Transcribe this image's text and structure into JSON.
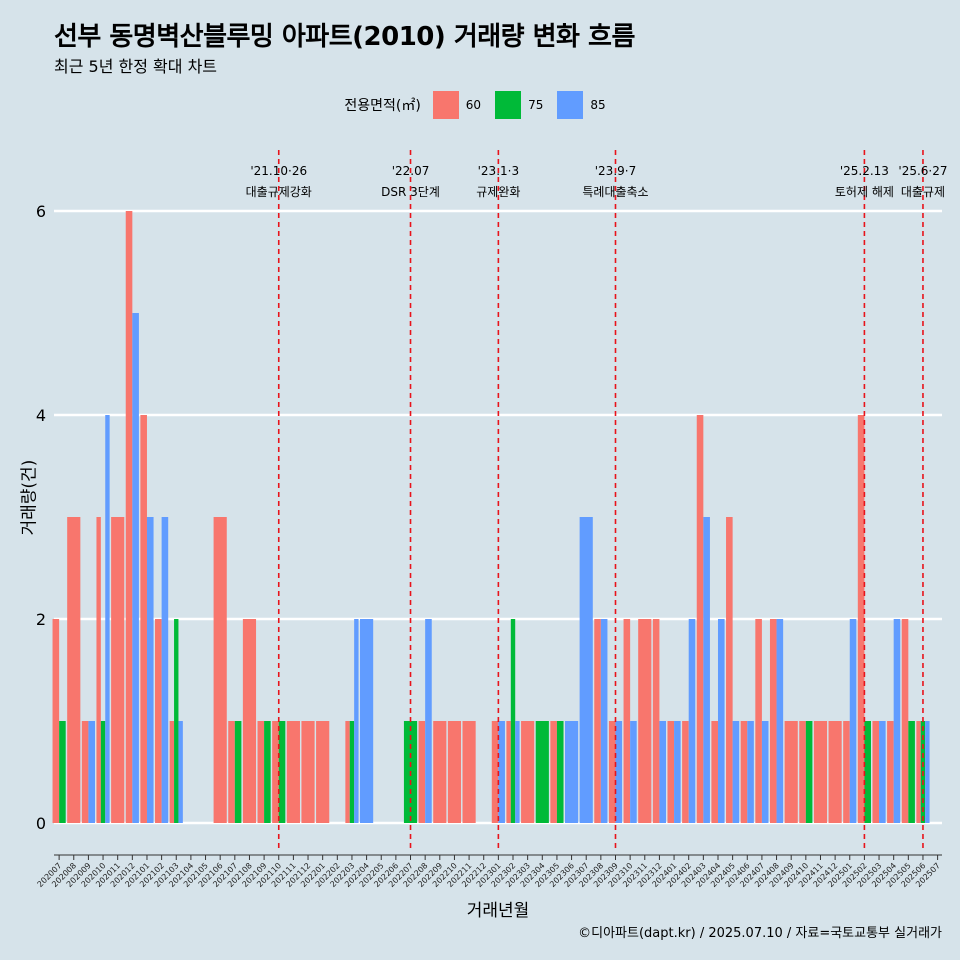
{
  "header": {
    "title": "선부 동명벽산블루밍 아파트(2010) 거래량 변화 흐름",
    "subtitle": "최근 5년 한정 확대 차트"
  },
  "legend": {
    "title": "전용면적(㎡)",
    "items": [
      {
        "label": "60",
        "color": "#f8766d"
      },
      {
        "label": "75",
        "color": "#00ba38"
      },
      {
        "label": "85",
        "color": "#619cff"
      }
    ]
  },
  "caption": "©디아파트(dapt.kr) / 2025.07.10 / 자료=국토교통부 실거래가",
  "chart_data": {
    "type": "bar",
    "xlabel": "거래년월",
    "ylabel": "거래량(건)",
    "ylim": [
      0,
      6
    ],
    "yticks": [
      0,
      2,
      4,
      6
    ],
    "grid": "horizontal major lines only",
    "legend_position": "top",
    "categories": [
      "202007",
      "202008",
      "202009",
      "202010",
      "202011",
      "202012",
      "202101",
      "202102",
      "202103",
      "202104",
      "202105",
      "202106",
      "202107",
      "202108",
      "202109",
      "202110",
      "202111",
      "202112",
      "202201",
      "202202",
      "202203",
      "202204",
      "202205",
      "202206",
      "202207",
      "202208",
      "202209",
      "202210",
      "202211",
      "202212",
      "202301",
      "202302",
      "202303",
      "202304",
      "202305",
      "202306",
      "202307",
      "202308",
      "202309",
      "202310",
      "202311",
      "202312",
      "202401",
      "202402",
      "202403",
      "202404",
      "202405",
      "202406",
      "202407",
      "202408",
      "202409",
      "202410",
      "202411",
      "202412",
      "202501",
      "202502",
      "202503",
      "202504",
      "202505",
      "202506",
      "202507"
    ],
    "series": [
      {
        "name": "60",
        "color": "#f8766d",
        "values": [
          2,
          3,
          1,
          3,
          3,
          6,
          4,
          2,
          1,
          0,
          0,
          3,
          1,
          2,
          1,
          1,
          1,
          1,
          1,
          0,
          1,
          0,
          0,
          0,
          0,
          1,
          1,
          1,
          1,
          0,
          1,
          1,
          1,
          0,
          1,
          0,
          0,
          2,
          1,
          2,
          2,
          2,
          1,
          1,
          4,
          1,
          3,
          1,
          2,
          2,
          1,
          1,
          1,
          1,
          1,
          4,
          1,
          1,
          2,
          1,
          0
        ]
      },
      {
        "name": "75",
        "color": "#00ba38",
        "values": [
          1,
          0,
          0,
          1,
          0,
          0,
          0,
          0,
          2,
          0,
          0,
          0,
          1,
          0,
          1,
          1,
          0,
          0,
          0,
          0,
          1,
          0,
          0,
          0,
          1,
          0,
          0,
          0,
          0,
          0,
          0,
          2,
          0,
          1,
          1,
          0,
          0,
          0,
          0,
          0,
          0,
          0,
          0,
          0,
          0,
          0,
          0,
          0,
          0,
          0,
          0,
          1,
          0,
          0,
          0,
          1,
          0,
          0,
          1,
          1,
          0
        ]
      },
      {
        "name": "85",
        "color": "#619cff",
        "values": [
          0,
          0,
          1,
          4,
          0,
          5,
          3,
          3,
          1,
          0,
          0,
          0,
          0,
          0,
          0,
          0,
          0,
          0,
          0,
          0,
          2,
          2,
          0,
          0,
          0,
          2,
          0,
          0,
          0,
          0,
          1,
          1,
          0,
          0,
          0,
          1,
          3,
          2,
          1,
          1,
          0,
          1,
          1,
          2,
          3,
          2,
          1,
          1,
          1,
          2,
          0,
          0,
          0,
          0,
          2,
          0,
          1,
          2,
          0,
          1,
          0
        ]
      }
    ],
    "annotations": [
      {
        "x": "202110",
        "date": "'21.10·26",
        "label": "대출규제강화"
      },
      {
        "x": "202207",
        "date": "'22.07",
        "label": "DSR 3단계"
      },
      {
        "x": "202301",
        "date": "'23.1·3",
        "label": "규제완화"
      },
      {
        "x": "202309",
        "date": "'23.9·7",
        "label": "특례대출축소"
      },
      {
        "x": "202502",
        "date": "'25.2.13",
        "label": "토허제 해제"
      },
      {
        "x": "202506",
        "date": "'25.6·27",
        "label": "대출규제"
      }
    ]
  }
}
